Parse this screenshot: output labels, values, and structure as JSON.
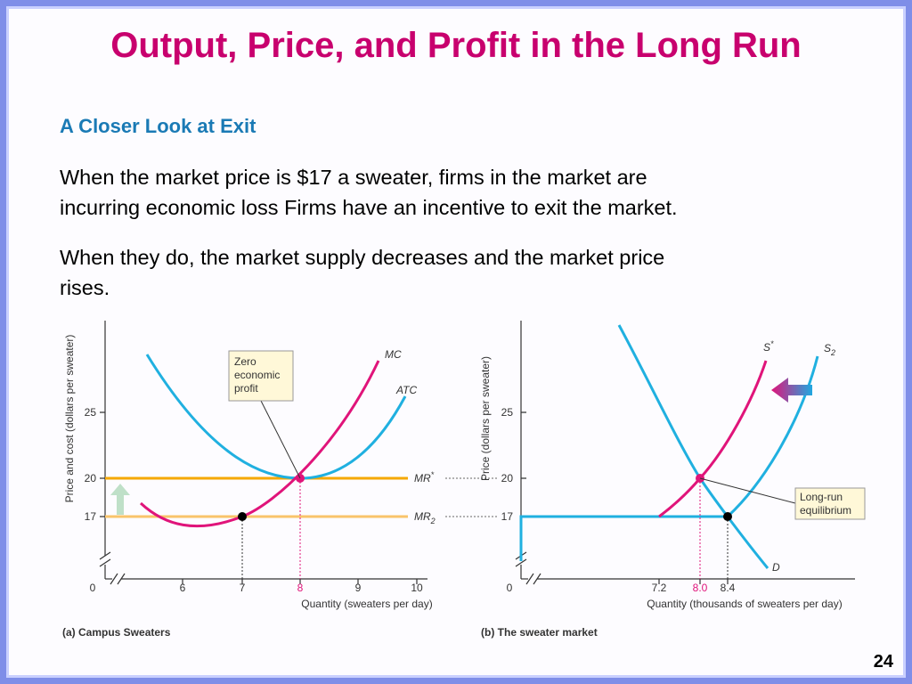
{
  "title": "Output, Price, and Profit in the Long Run",
  "subtitle": "A Closer Look at Exit",
  "paragraphs": [
    [
      "When the market price is $17 a sweater, firms in the market are",
      "incurring economic loss Firms have an incentive to exit the market."
    ],
    [
      "When they do, the market supply decreases and the market price",
      "rises."
    ]
  ],
  "panel_a": {
    "y_axis_label": "Price and cost (dollars per sweater)",
    "y_ticks": [
      "25",
      "20",
      "17"
    ],
    "origin": "0",
    "x_ticks": [
      "6",
      "7",
      "8",
      "9",
      "10"
    ],
    "x_axis_label": "Quantity (sweaters per day)",
    "caption": "(a) Campus Sweaters",
    "mc": "MC",
    "atc": "ATC",
    "mr_star": {
      "base": "MR",
      "sup": "*"
    },
    "mr_2": {
      "base": "MR",
      "sub": "2"
    },
    "callout": [
      "Zero",
      "economic",
      "profit"
    ]
  },
  "panel_b": {
    "y_axis_label": "Price (dollars per sweater)",
    "y_ticks": [
      "25",
      "20",
      "17"
    ],
    "origin": "0",
    "x_ticks": [
      "7.2",
      "8.0",
      "8.4"
    ],
    "x_axis_label": "Quantity (thousands of sweaters per day)",
    "caption": "(b) The sweater market",
    "s_star": {
      "base": "S",
      "sup": "*"
    },
    "s_2": {
      "base": "S",
      "sub": "2"
    },
    "d": "D",
    "callout": [
      "Long-run",
      "equilibrium"
    ]
  },
  "page_number": "24"
}
